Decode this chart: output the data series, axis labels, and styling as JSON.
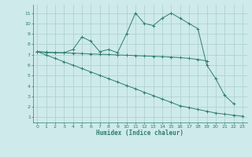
{
  "line1_x": [
    0,
    1,
    2,
    3,
    4,
    5,
    6,
    7,
    8,
    9,
    10,
    11,
    12,
    13,
    14,
    15,
    16,
    17,
    18,
    19,
    20,
    21,
    22
  ],
  "line1_y": [
    7.3,
    7.2,
    7.2,
    7.2,
    7.5,
    8.7,
    8.3,
    7.3,
    7.5,
    7.2,
    9.0,
    11.0,
    10.0,
    9.8,
    10.5,
    11.0,
    10.5,
    10.0,
    9.5,
    6.0,
    4.7,
    3.1,
    2.3
  ],
  "line2_x": [
    0,
    1,
    2,
    3,
    4,
    5,
    6,
    7,
    8,
    9,
    10,
    11,
    12,
    13,
    14,
    15,
    16,
    17,
    18,
    19
  ],
  "line2_y": [
    7.3,
    7.25,
    7.2,
    7.18,
    7.15,
    7.12,
    7.08,
    7.05,
    7.02,
    6.98,
    6.95,
    6.92,
    6.88,
    6.85,
    6.82,
    6.78,
    6.72,
    6.65,
    6.55,
    6.4
  ],
  "line3_x": [
    0,
    1,
    2,
    3,
    4,
    5,
    6,
    7,
    8,
    9,
    10,
    11,
    12,
    13,
    14,
    15,
    16,
    17,
    18,
    19,
    20,
    21,
    22,
    23
  ],
  "line3_y": [
    7.3,
    6.97,
    6.65,
    6.32,
    6.0,
    5.68,
    5.35,
    5.03,
    4.7,
    4.38,
    4.05,
    3.73,
    3.4,
    3.08,
    2.75,
    2.43,
    2.1,
    1.93,
    1.75,
    1.58,
    1.4,
    1.3,
    1.2,
    1.1
  ],
  "color": "#2e7d72",
  "bg_color": "#ceeaea",
  "grid_color": "#aacece",
  "xlabel": "Humidex (Indice chaleur)",
  "xlim": [
    -0.5,
    23.5
  ],
  "ylim": [
    0.5,
    11.8
  ],
  "yticks": [
    1,
    2,
    3,
    4,
    5,
    6,
    7,
    8,
    9,
    10,
    11
  ],
  "xticks": [
    0,
    1,
    2,
    3,
    4,
    5,
    6,
    7,
    8,
    9,
    10,
    11,
    12,
    13,
    14,
    15,
    16,
    17,
    18,
    19,
    20,
    21,
    22,
    23
  ]
}
